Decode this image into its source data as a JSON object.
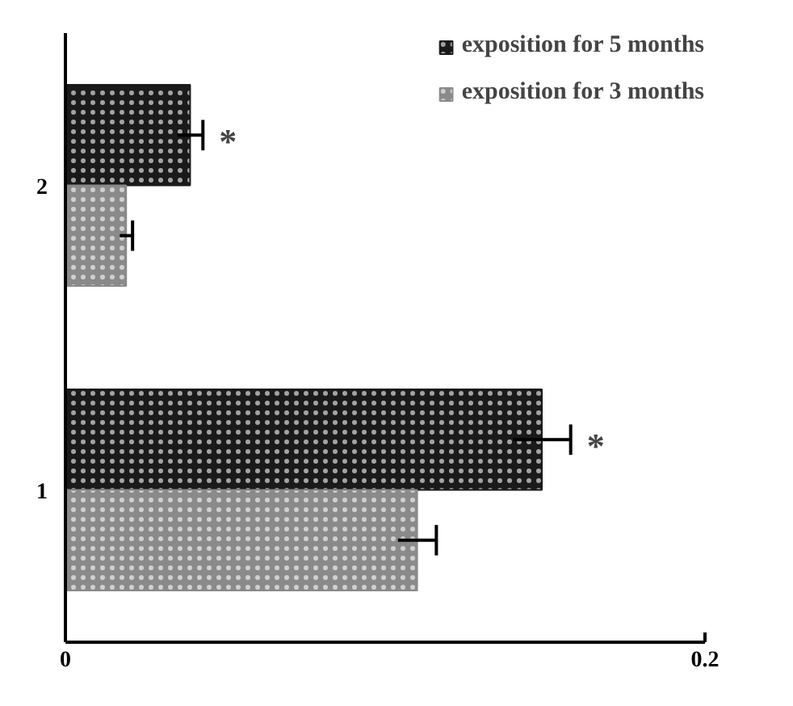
{
  "chart_data": {
    "type": "bar",
    "orientation": "horizontal",
    "categories": [
      "2",
      "1"
    ],
    "series": [
      {
        "name": "exposition for 5 months",
        "color": "#1a1a1a",
        "values": [
          0.039,
          0.149
        ],
        "errors": [
          0.004,
          0.009
        ]
      },
      {
        "name": "exposition for 3 months",
        "color": "#8a8a8a",
        "values": [
          0.019,
          0.11
        ],
        "errors": [
          0.002,
          0.006
        ]
      }
    ],
    "xlim": [
      0,
      0.2
    ],
    "xticks": [
      0,
      0.2
    ],
    "grid": false,
    "legend": "top right",
    "annotations": [
      "*",
      "*"
    ]
  }
}
